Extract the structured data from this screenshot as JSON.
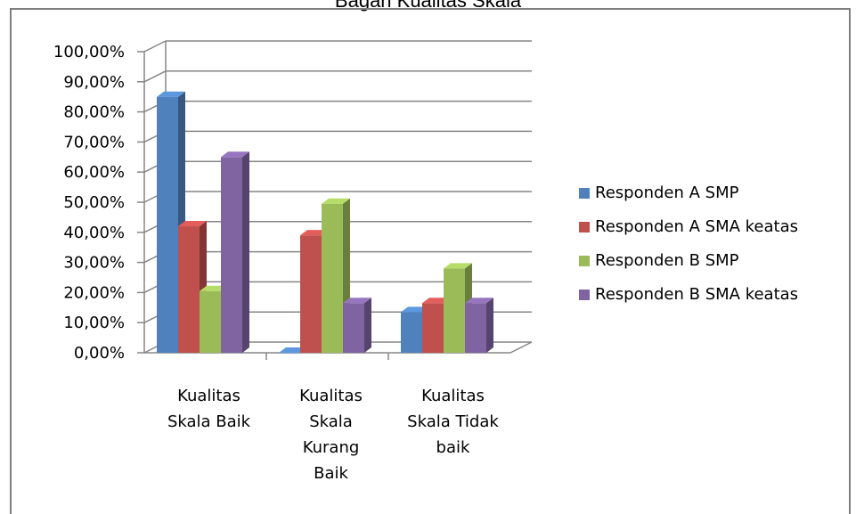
{
  "chart_data": {
    "type": "bar",
    "title": "Bagan Kualitas Skala",
    "categories": [
      [
        "Kualitas",
        "Skala Baik"
      ],
      [
        "Kualitas",
        "Skala",
        "Kurang",
        "Baik"
      ],
      [
        "Kualitas",
        "Skala Tidak",
        "baik"
      ]
    ],
    "series": [
      {
        "name": "Responden A SMP",
        "values": [
          85,
          0,
          13.5
        ],
        "color": "#4f81bd"
      },
      {
        "name": "Responden A SMA keatas",
        "values": [
          42,
          39,
          16.5
        ],
        "color": "#c0504d"
      },
      {
        "name": "Responden B SMP",
        "values": [
          20.5,
          49.5,
          28
        ],
        "color": "#9bbb59"
      },
      {
        "name": "Responden B SMA keatas",
        "values": [
          65,
          16.5,
          16.5
        ],
        "color": "#8064a2"
      }
    ],
    "ylim": [
      0,
      100
    ],
    "yticks": [
      "0,00%",
      "10,00%",
      "20,00%",
      "30,00%",
      "40,00%",
      "50,00%",
      "60,00%",
      "70,00%",
      "80,00%",
      "90,00%",
      "100,00%"
    ],
    "grid": true,
    "legend_position": "right",
    "style": "3d-clustered-column"
  }
}
